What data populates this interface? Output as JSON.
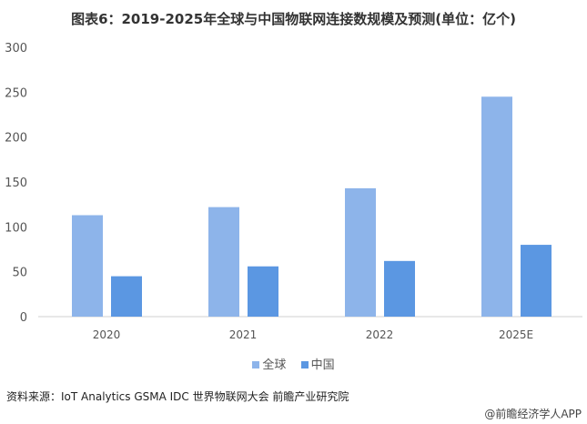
{
  "title": "图表6：2019-2025年全球与中国物联网连接数规模及预测(单位：亿个)",
  "source": "资料来源：IoT Analytics GSMA IDC 世界物联网大会 前瞻产业研究院",
  "credit": "@前瞻经济学人APP",
  "chart_data": {
    "type": "bar",
    "title": "图表6：2019-2025年全球与中国物联网连接数规模及预测(单位：亿个)",
    "categories": [
      "2020",
      "2021",
      "2022",
      "2025E"
    ],
    "series": [
      {
        "name": "全球",
        "values": [
          113,
          122,
          143,
          245
        ],
        "color": "#8db4ea"
      },
      {
        "name": "中国",
        "values": [
          45,
          56,
          62,
          80
        ],
        "color": "#5b97e2"
      }
    ],
    "ylim": [
      0,
      300
    ],
    "yticks": [
      0,
      50,
      100,
      150,
      200,
      250,
      300
    ],
    "grid": false,
    "legend": "bottom"
  }
}
